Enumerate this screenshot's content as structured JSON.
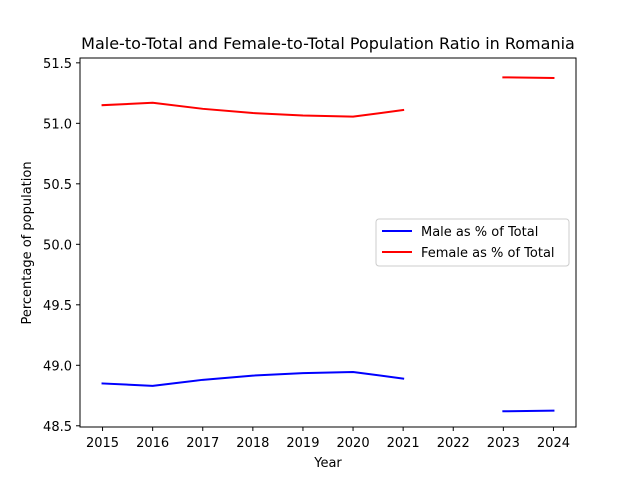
{
  "chart_data": {
    "type": "line",
    "title": "Male-to-Total and Female-to-Total Population Ratio in Romania",
    "xlabel": "Year",
    "ylabel": "Percentage of population",
    "x": [
      2015,
      2016,
      2017,
      2018,
      2019,
      2020,
      2021,
      2022,
      2023,
      2024
    ],
    "xticks": [
      "2015",
      "2016",
      "2017",
      "2018",
      "2019",
      "2020",
      "2021",
      "2022",
      "2023",
      "2024"
    ],
    "yticks": [
      "48.5",
      "49.0",
      "49.5",
      "50.0",
      "50.5",
      "51.0",
      "51.5"
    ],
    "ytick_values": [
      48.5,
      49.0,
      49.5,
      50.0,
      50.5,
      51.0,
      51.5
    ],
    "xlim": [
      2014.55,
      2024.45
    ],
    "ylim": [
      48.49,
      51.54
    ],
    "grid": false,
    "legend_position": "center-right",
    "series": [
      {
        "name": "Male as % of Total",
        "color": "#0000ff",
        "values": [
          48.85,
          48.83,
          48.88,
          48.915,
          48.935,
          48.945,
          48.89,
          null,
          48.62,
          48.625
        ]
      },
      {
        "name": "Female as % of Total",
        "color": "#ff0000",
        "values": [
          51.15,
          51.17,
          51.12,
          51.085,
          51.065,
          51.055,
          51.11,
          null,
          51.38,
          51.375
        ]
      }
    ]
  }
}
